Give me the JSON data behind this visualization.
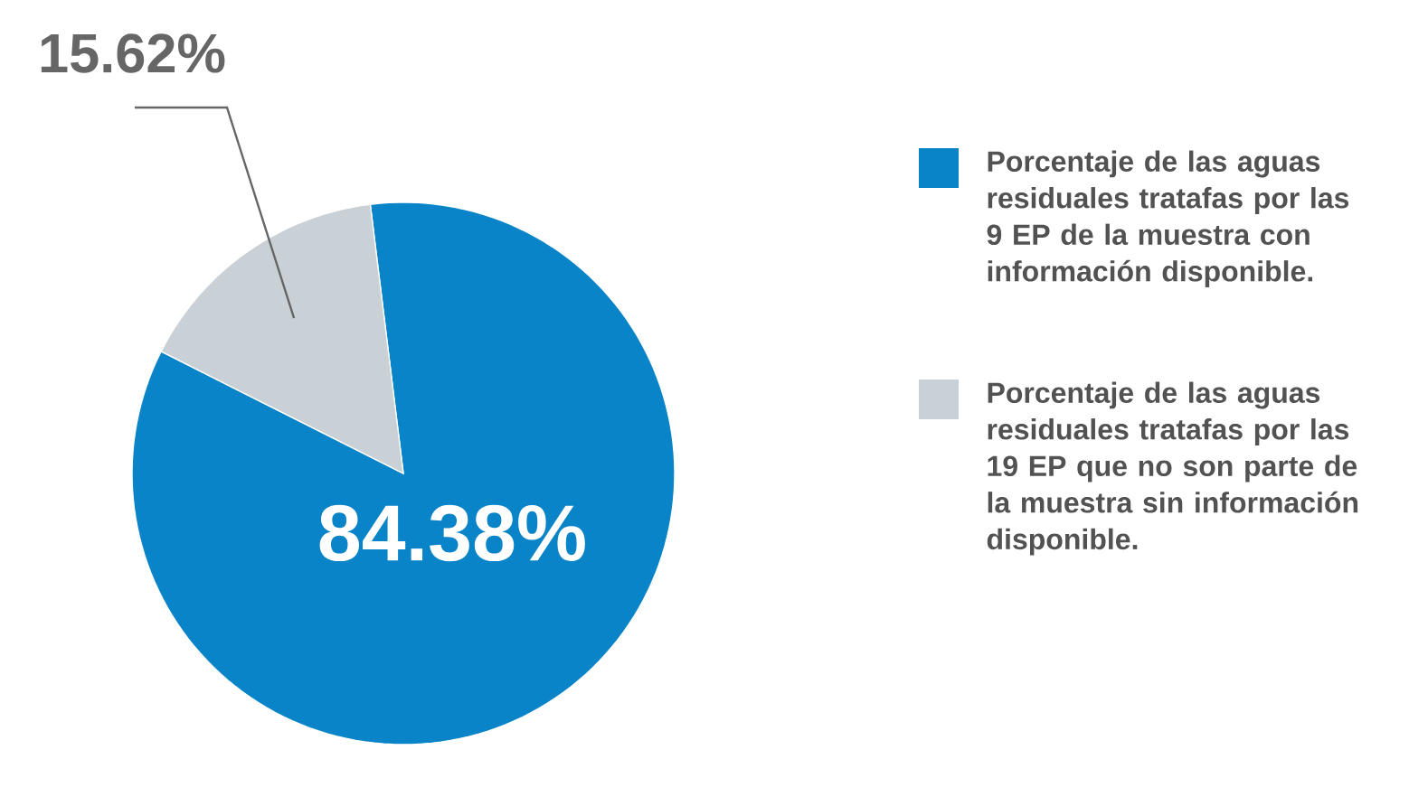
{
  "chart_data": {
    "type": "pie",
    "categories": [
      "Porcentaje de las aguas residuales tratafas por las 9 EP de la muestra con información disponible.",
      "Porcentaje de las aguas residuales tratafas por las 19 EP que no son parte de la muestra sin información disponible."
    ],
    "values": [
      84.38,
      15.62
    ],
    "colors": [
      "#0a84c8",
      "#c9d1d6"
    ],
    "value_labels": [
      "84.38%",
      "15.62%"
    ],
    "legend": "right"
  }
}
